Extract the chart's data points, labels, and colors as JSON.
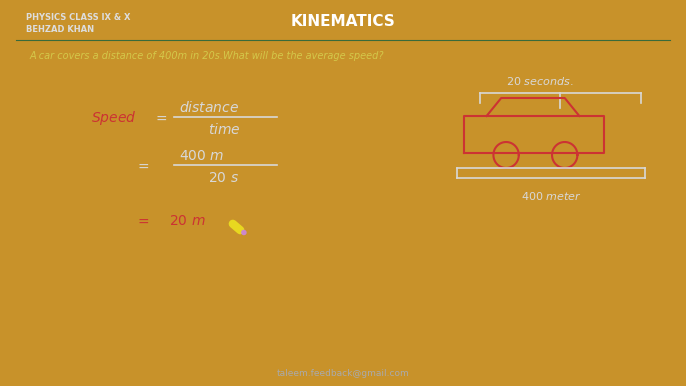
{
  "bg_color": "#1a4a1a",
  "border_color": "#c8922a",
  "title": "KINEMATICS",
  "subtitle_line1": "PHYSICS CLASS IX & X",
  "subtitle_line2": "BEHZAD KHAN",
  "question": "A car covers a distance of 400m in 20s.What will be the average speed?",
  "footer": "taleem.feedback@gmail.com",
  "title_color": "#ffffff",
  "subtitle_color": "#dddddd",
  "question_color": "#d4c84a",
  "footer_color": "#aaaaaa",
  "chalk_white": "#d8d8d8",
  "chalk_red": "#cc3333"
}
